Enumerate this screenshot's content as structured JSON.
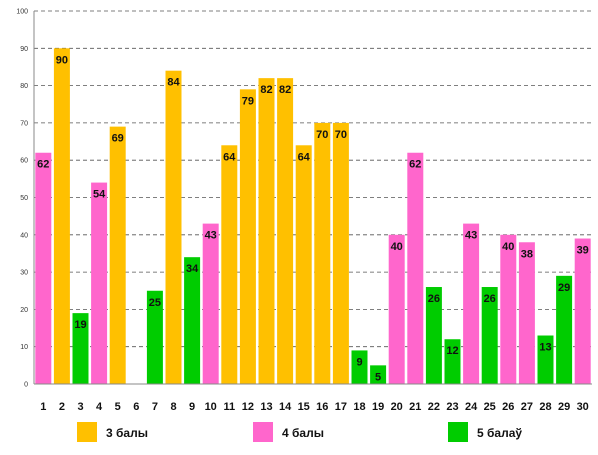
{
  "chart_data": {
    "type": "bar",
    "title": "",
    "xlabel": "",
    "ylabel": "",
    "ylim": [
      0,
      100
    ],
    "yticks": [
      0,
      10,
      20,
      30,
      40,
      50,
      60,
      70,
      80,
      90,
      100
    ],
    "grid": true,
    "legend_position": "bottom",
    "categories": [
      "1",
      "2",
      "3",
      "4",
      "5",
      "6",
      "7",
      "8",
      "9",
      "10",
      "11",
      "12",
      "13",
      "14",
      "15",
      "16",
      "17",
      "18",
      "19",
      "20",
      "21",
      "22",
      "23",
      "24",
      "25",
      "26",
      "27",
      "28",
      "29",
      "30"
    ],
    "values": [
      62,
      90,
      19,
      54,
      69,
      null,
      25,
      84,
      34,
      43,
      64,
      79,
      82,
      82,
      64,
      70,
      70,
      9,
      5,
      40,
      62,
      26,
      12,
      43,
      26,
      40,
      38,
      13,
      29,
      39
    ],
    "value_series": [
      1,
      0,
      2,
      1,
      0,
      null,
      2,
      0,
      2,
      1,
      0,
      0,
      0,
      0,
      0,
      0,
      0,
      2,
      2,
      1,
      1,
      2,
      2,
      1,
      2,
      1,
      1,
      2,
      2,
      1
    ],
    "series": [
      {
        "name": "3 балы",
        "color": "#FFC000"
      },
      {
        "name": "4 балы",
        "color": "#FF66CC"
      },
      {
        "name": "5 балаў",
        "color": "#00CC00"
      }
    ]
  }
}
